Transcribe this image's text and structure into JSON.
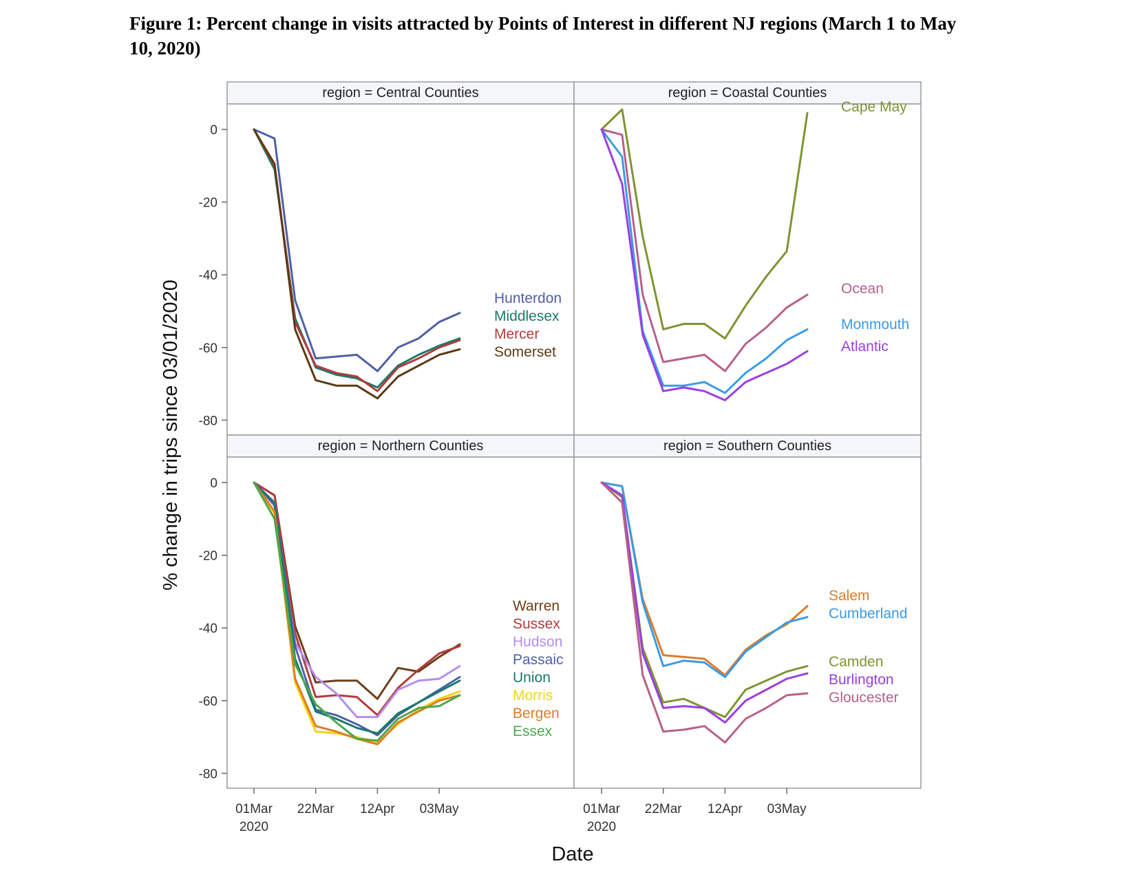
{
  "figure_title": "Figure 1: Percent change in visits attracted by Points of Interest in different NJ regions (March 1 to May 10, 2020)",
  "chart_data": {
    "type": "line",
    "ylabel": "% change in trips since 03/01/2020",
    "xlabel": "Date",
    "ylim": [
      -82,
      3
    ],
    "yticks": [
      0,
      -20,
      -40,
      -60,
      -80
    ],
    "x": [
      "2020-03-01",
      "2020-03-08",
      "2020-03-15",
      "2020-03-22",
      "2020-03-29",
      "2020-04-05",
      "2020-04-12",
      "2020-04-19",
      "2020-04-26",
      "2020-05-03",
      "2020-05-10"
    ],
    "xticks": [
      {
        "date": "2020-03-01",
        "label": "01Mar",
        "label2": "2020"
      },
      {
        "date": "2020-03-22",
        "label": "22Mar",
        "label2": ""
      },
      {
        "date": "2020-04-12",
        "label": "12Apr",
        "label2": ""
      },
      {
        "date": "2020-05-03",
        "label": "03May",
        "label2": ""
      }
    ],
    "grid": false,
    "panels": [
      {
        "title": "region = Central Counties",
        "series": [
          {
            "name": "Hunterdon",
            "color": "#4e5fa6",
            "values": [
              0,
              -2.5,
              -47,
              -63,
              -62.5,
              -62,
              -66.5,
              -60,
              -57.5,
              -53,
              -50.5
            ]
          },
          {
            "name": "Middlesex",
            "color": "#197a6a",
            "values": [
              0,
              -11,
              -52,
              -65.5,
              -67.5,
              -68.5,
              -71,
              -65,
              -62,
              -59.5,
              -57.5
            ]
          },
          {
            "name": "Mercer",
            "color": "#b23b3b",
            "values": [
              0,
              -10,
              -53,
              -65,
              -67,
              -68,
              -72,
              -65.5,
              -63,
              -60,
              -58
            ]
          },
          {
            "name": "Somerset",
            "color": "#5b3a12",
            "values": [
              0,
              -9.5,
              -55,
              -69,
              -70.5,
              -70.5,
              -74,
              -68,
              -65,
              -62,
              -60.5
            ]
          }
        ]
      },
      {
        "title": "region = Coastal Counties",
        "series": [
          {
            "name": "Cape May",
            "color": "#7d9432",
            "values": [
              0,
              5.5,
              -29.5,
              -55,
              -53.5,
              -53.5,
              -57.5,
              -48.5,
              -40.5,
              -33.5,
              4.5
            ]
          },
          {
            "name": "Ocean",
            "color": "#b7608a",
            "values": [
              0,
              -1.5,
              -45.5,
              -64,
              -63,
              -62,
              -66.5,
              -59,
              -54.5,
              -49,
              -45.5
            ]
          },
          {
            "name": "Monmouth",
            "color": "#3a9be6",
            "values": [
              0,
              -7.5,
              -55.5,
              -70.5,
              -70.5,
              -69.5,
              -72.5,
              -67,
              -63,
              -58,
              -55
            ]
          },
          {
            "name": "Atlantic",
            "color": "#9b3ee0",
            "values": [
              0,
              -15,
              -56.5,
              -72,
              -71,
              -72,
              -74.5,
              -69.5,
              -67,
              -64.5,
              -61
            ]
          }
        ]
      },
      {
        "title": "region = Northern Counties",
        "series": [
          {
            "name": "Warren",
            "color": "#6b3e1a",
            "values": [
              0,
              -3.5,
              -39.5,
              -55,
              -54.5,
              -54.5,
              -59.5,
              -51,
              -52,
              -48,
              -44.5
            ]
          },
          {
            "name": "Sussex",
            "color": "#b23b3b",
            "values": [
              0,
              -3.5,
              -41.5,
              -59,
              -58.5,
              -59,
              -64,
              -56.5,
              -51.5,
              -47,
              -45
            ]
          },
          {
            "name": "Hudson",
            "color": "#b48cf0",
            "values": [
              0,
              -6.5,
              -44,
              -53.5,
              -58,
              -64.5,
              -64.5,
              -57,
              -54.5,
              -54,
              -50.5
            ]
          },
          {
            "name": "Passaic",
            "color": "#4e5fa6",
            "values": [
              0,
              -5.5,
              -45,
              -62.5,
              -64,
              -66.5,
              -69.5,
              -64,
              -60.5,
              -57,
              -53.5
            ]
          },
          {
            "name": "Union",
            "color": "#197a6a",
            "values": [
              0,
              -6,
              -48.5,
              -63,
              -65,
              -67.5,
              -69,
              -63.5,
              -60.5,
              -57.5,
              -54.5
            ]
          },
          {
            "name": "Morris",
            "color": "#f2d31b",
            "values": [
              0,
              -8.5,
              -55,
              -68.5,
              -69,
              -70,
              -71.5,
              -66.5,
              -62.5,
              -59.5,
              -57.5
            ]
          },
          {
            "name": "Bergen",
            "color": "#e07b24",
            "values": [
              0,
              -8,
              -54,
              -67,
              -68.5,
              -70.5,
              -72,
              -66,
              -63,
              -60,
              -58.5
            ]
          },
          {
            "name": "Essex",
            "color": "#4aa84a",
            "values": [
              0,
              -10,
              -50,
              -61,
              -66,
              -70.5,
              -71,
              -65,
              -62,
              -61.5,
              -58.5
            ]
          }
        ]
      },
      {
        "title": "region = Southern Counties",
        "series": [
          {
            "name": "Salem",
            "color": "#e07b24",
            "values": [
              0,
              -1,
              -32,
              -47.5,
              -48,
              -48.5,
              -53,
              -46,
              -42,
              -39,
              -34
            ]
          },
          {
            "name": "Cumberland",
            "color": "#3a9be6",
            "values": [
              0,
              -1,
              -33,
              -50.5,
              -49,
              -49.5,
              -53.5,
              -46.5,
              -42.5,
              -38.5,
              -37
            ]
          },
          {
            "name": "Camden",
            "color": "#7d9432",
            "values": [
              0,
              -4,
              -45.5,
              -60.5,
              -59.5,
              -62,
              -64.5,
              -57,
              -54.5,
              -52,
              -50.5
            ]
          },
          {
            "name": "Burlington",
            "color": "#9b3ee0",
            "values": [
              0,
              -3.5,
              -47,
              -62,
              -61.5,
              -62,
              -66,
              -60,
              -57,
              -54,
              -52.5
            ]
          },
          {
            "name": "Gloucester",
            "color": "#b7608a",
            "values": [
              0,
              -5.5,
              -53,
              -68.5,
              -68,
              -67,
              -71.5,
              -65,
              -62,
              -58.5,
              -58
            ]
          }
        ]
      }
    ]
  }
}
